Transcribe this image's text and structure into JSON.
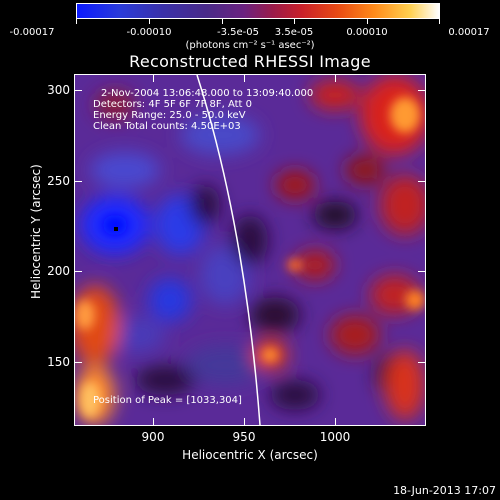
{
  "colorbar": {
    "tick_labels": [
      "-0.00017",
      "-0.00010",
      "-3.5e-05",
      "3.5e-05",
      "0.00010",
      "0.00017"
    ],
    "units": "(photons cm⁻² s⁻¹ asec⁻²)"
  },
  "title": "Reconstructed RHESSI Image",
  "info": {
    "time_range": "2-Nov-2004 13:06:48.000 to 13:09:40.000",
    "detectors": "Detectors: 4F 5F 6F 7F 8F, Att 0",
    "energy": "Energy Range: 25.0 - 50.0 keV",
    "clean": "Clean    Total counts: 4.50E+03",
    "peak": "Position of Peak = [1033,304]"
  },
  "axes": {
    "xlabel": "Heliocentric X (arcsec)",
    "ylabel": "Heliocentric Y (arcsec)",
    "xticks": [
      "900",
      "950",
      "1000"
    ],
    "yticks": [
      "300",
      "250",
      "200",
      "150"
    ]
  },
  "timestamp": "18-Jun-2013 17:07"
}
